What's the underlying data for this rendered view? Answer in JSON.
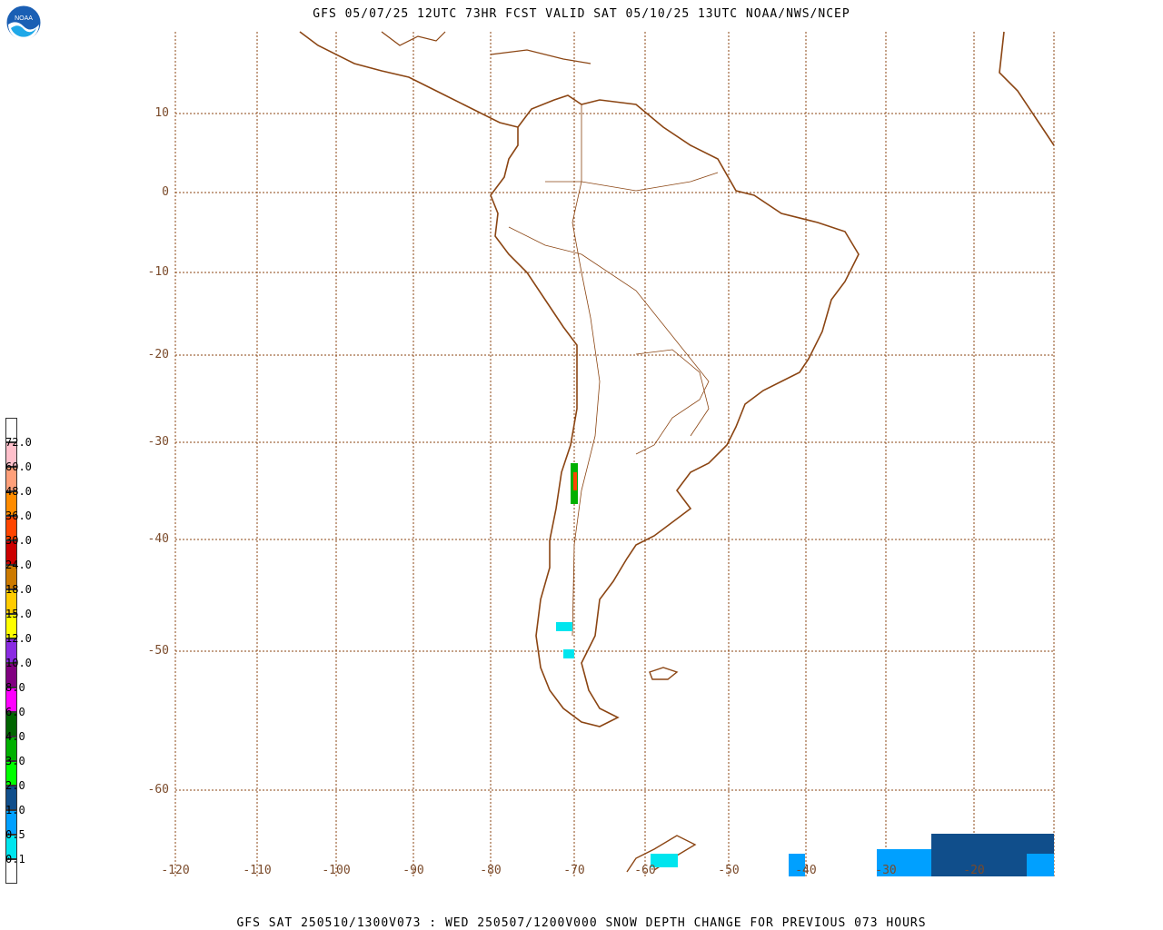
{
  "header": {
    "title": "GFS 05/07/25 12UTC 73HR FCST VALID SAT 05/10/25 13UTC NOAA/NWS/NCEP"
  },
  "footer": {
    "title": "GFS SAT 250510/1300V073 : WED 250507/1200V000 SNOW DEPTH CHANGE FOR PREVIOUS 073 HOURS"
  },
  "logo": {
    "text": "NOAA",
    "icon": "noaa-logo-icon"
  },
  "map": {
    "projection": "mercator",
    "lon_range": [
      -120,
      0
    ],
    "lat_range": [
      -64,
      20
    ],
    "grid_color": "#8b4513",
    "coast_color": "#8b4513",
    "lat_ticks": [
      "10",
      "0",
      "-10",
      "-20",
      "-30",
      "-40",
      "-50",
      "-60"
    ],
    "lon_ticks": [
      "-120",
      "-110",
      "-100",
      "-90",
      "-80",
      "-70",
      "-60",
      "-50",
      "-40",
      "-30",
      "-20"
    ]
  },
  "legend": {
    "labels": [
      "72.0",
      "60.0",
      "48.0",
      "36.0",
      "30.0",
      "24.0",
      "18.0",
      "15.0",
      "12.0",
      "10.0",
      "8.0",
      "6.0",
      "4.0",
      "3.0",
      "2.0",
      "1.0",
      "0.5",
      "0.1"
    ],
    "colors": [
      "#ffffff",
      "#ffc0cb",
      "#ffa07a",
      "#ff8c00",
      "#ff4500",
      "#cc0000",
      "#cc7a00",
      "#ffcc00",
      "#ffff00",
      "#8a2be2",
      "#800080",
      "#ff00ff",
      "#006400",
      "#00b000",
      "#00ff00",
      "#104e8b",
      "#00a0ff",
      "#00e5ee",
      "#ffffff"
    ]
  }
}
